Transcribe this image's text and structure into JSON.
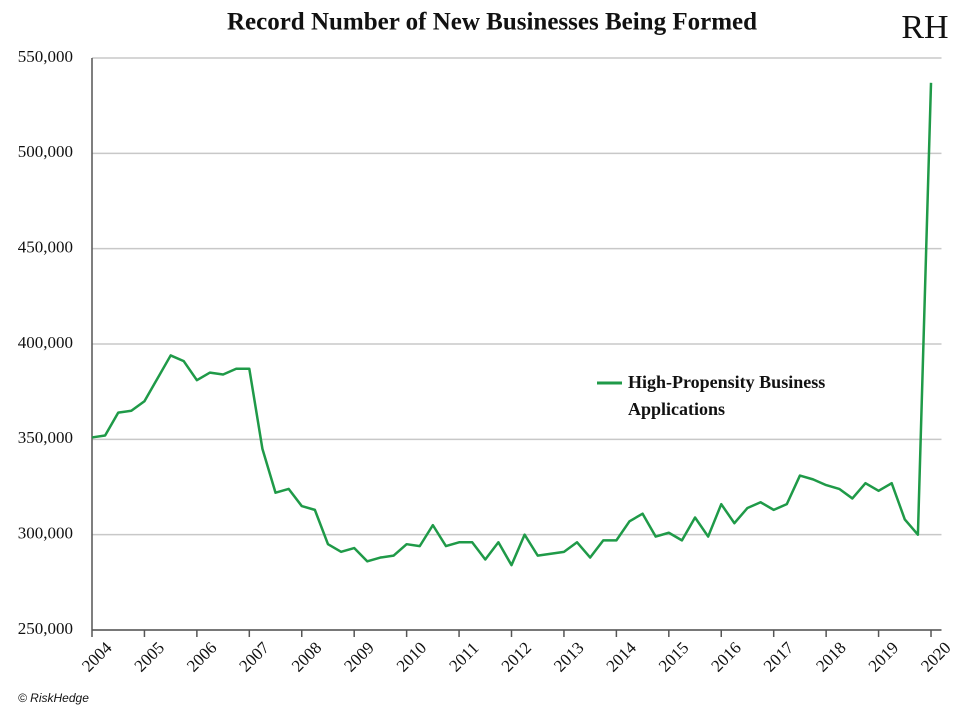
{
  "chart_data": {
    "type": "line",
    "title": "Record Number of New Businesses Being Formed",
    "logo": "RH",
    "source": "© RiskHedge",
    "x": [
      2004,
      2004.25,
      2004.5,
      2004.75,
      2005,
      2005.25,
      2005.5,
      2005.75,
      2006,
      2006.25,
      2006.5,
      2006.75,
      2007,
      2007.25,
      2007.5,
      2007.75,
      2008,
      2008.25,
      2008.5,
      2008.75,
      2009,
      2009.25,
      2009.5,
      2009.75,
      2010,
      2010.25,
      2010.5,
      2010.75,
      2011,
      2011.25,
      2011.5,
      2011.75,
      2012,
      2012.25,
      2012.5,
      2012.75,
      2013,
      2013.25,
      2013.5,
      2013.75,
      2014,
      2014.25,
      2014.5,
      2014.75,
      2015,
      2015.25,
      2015.5,
      2015.75,
      2016,
      2016.25,
      2016.5,
      2016.75,
      2017,
      2017.25,
      2017.5,
      2017.75,
      2018,
      2018.25,
      2018.5,
      2018.75,
      2019,
      2019.25,
      2019.5,
      2019.75,
      2020
    ],
    "series": [
      {
        "name": "High-Propensity Business Applications",
        "color": "#1f9a48",
        "values": [
          351000,
          352000,
          364000,
          365000,
          370000,
          382000,
          394000,
          391000,
          381000,
          385000,
          384000,
          387000,
          387000,
          345000,
          322000,
          324000,
          315000,
          313000,
          295000,
          291000,
          293000,
          286000,
          288000,
          289000,
          295000,
          294000,
          305000,
          294000,
          296000,
          296000,
          287000,
          296000,
          284000,
          300000,
          289000,
          290000,
          291000,
          296000,
          288000,
          297000,
          297000,
          307000,
          311000,
          299000,
          301000,
          297000,
          309000,
          299000,
          316000,
          306000,
          314000,
          317000,
          313000,
          316000,
          331000,
          329000,
          326000,
          324000,
          319000,
          327000,
          323000,
          327000,
          308000,
          300000,
          537000
        ]
      }
    ],
    "xlim": [
      2004,
      2020.2
    ],
    "xticks": [
      2004,
      2005,
      2006,
      2007,
      2008,
      2009,
      2010,
      2011,
      2012,
      2013,
      2014,
      2015,
      2016,
      2017,
      2018,
      2019,
      2020
    ],
    "ylim": [
      250000,
      550000
    ],
    "yticks": [
      {
        "value": 250000,
        "label": "250,000"
      },
      {
        "value": 300000,
        "label": "300,000"
      },
      {
        "value": 350000,
        "label": "350,000"
      },
      {
        "value": 400000,
        "label": "400,000"
      },
      {
        "value": 450000,
        "label": "450,000"
      },
      {
        "value": 500000,
        "label": "500,000"
      },
      {
        "value": 550000,
        "label": "550,000"
      }
    ],
    "grid": true
  }
}
